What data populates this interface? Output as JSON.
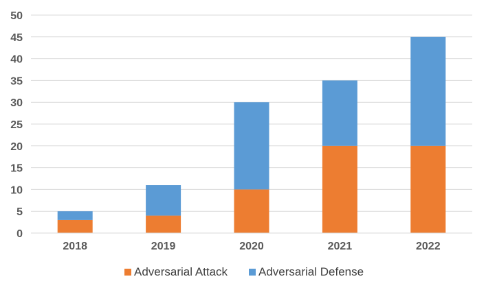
{
  "chart_data": {
    "type": "bar",
    "stacked": true,
    "categories": [
      "2018",
      "2019",
      "2020",
      "2021",
      "2022"
    ],
    "series": [
      {
        "name": "Adversarial Attack",
        "values": [
          3,
          4,
          10,
          20,
          20
        ],
        "color": "#ED7D31"
      },
      {
        "name": "Adversarial Defense",
        "values": [
          2,
          7,
          20,
          15,
          25
        ],
        "color": "#5B9BD5"
      }
    ],
    "title": "",
    "xlabel": "",
    "ylabel": "",
    "ylim": [
      0,
      50
    ],
    "yticks": [
      "0",
      "5",
      "10",
      "15",
      "20",
      "25",
      "30",
      "35",
      "40",
      "45",
      "50"
    ],
    "grid": true,
    "gridline_color": "#D9D9D9",
    "legend_position": "bottom"
  }
}
